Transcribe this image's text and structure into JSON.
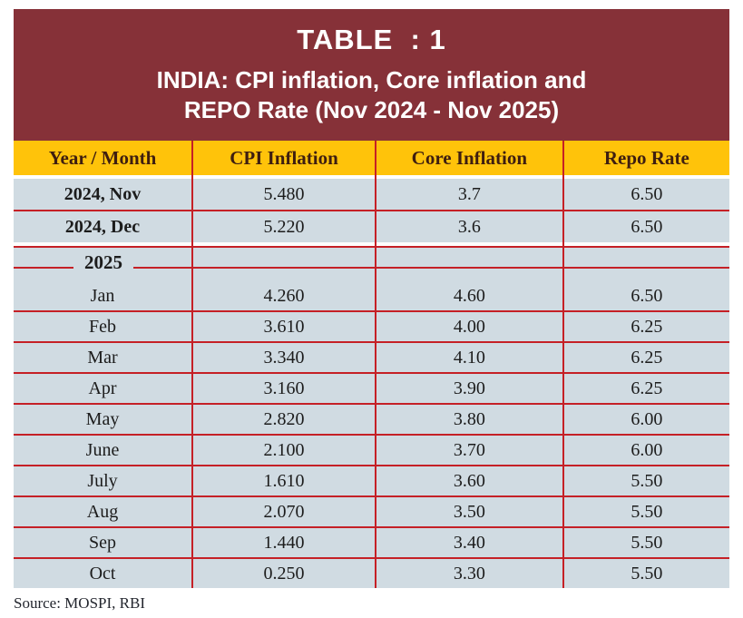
{
  "title_block": {
    "line1": "TABLE  : 1",
    "line2": "INDIA: CPI inflation, Core inflation and",
    "line3": "REPO Rate (Nov 2024 - Nov 2025)"
  },
  "table": {
    "header": {
      "col0": "Year / Month",
      "col1": "CPI Inflation",
      "col2": "Core Inflation",
      "col3": "Repo Rate"
    },
    "rows_2024": [
      {
        "label": "2024, Nov",
        "cpi": "5.480",
        "core": "3.7",
        "repo": "6.50"
      },
      {
        "label": "2024, Dec",
        "cpi": "5.220",
        "core": "3.6",
        "repo": "6.50"
      }
    ],
    "year_divider_label": "2025",
    "rows_2025": [
      {
        "label": "Jan",
        "cpi": "4.260",
        "core": "4.60",
        "repo": "6.50"
      },
      {
        "label": "Feb",
        "cpi": "3.610",
        "core": "4.00",
        "repo": "6.25"
      },
      {
        "label": "Mar",
        "cpi": "3.340",
        "core": "4.10",
        "repo": "6.25"
      },
      {
        "label": "Apr",
        "cpi": "3.160",
        "core": "3.90",
        "repo": "6.25"
      },
      {
        "label": "May",
        "cpi": "2.820",
        "core": "3.80",
        "repo": "6.00"
      },
      {
        "label": "June",
        "cpi": "2.100",
        "core": "3.70",
        "repo": "6.00"
      },
      {
        "label": "July",
        "cpi": "1.610",
        "core": "3.60",
        "repo": "5.50"
      },
      {
        "label": "Aug",
        "cpi": "2.070",
        "core": "3.50",
        "repo": "5.50"
      },
      {
        "label": "Sep",
        "cpi": "1.440",
        "core": "3.40",
        "repo": "5.50"
      },
      {
        "label": "Oct",
        "cpi": "0.250",
        "core": "3.30",
        "repo": "5.50"
      }
    ]
  },
  "source_note": "Source: MOSPI, RBI",
  "colors": {
    "maroon": "#863138",
    "yellow": "#FFC30A",
    "row_blue": "#D0DBE2",
    "grid_red": "#C52026",
    "header_text": "#3E1E10",
    "cell_text": "#1C1C1C",
    "title_text": "#FFFFFF",
    "source_text": "#23262E"
  }
}
